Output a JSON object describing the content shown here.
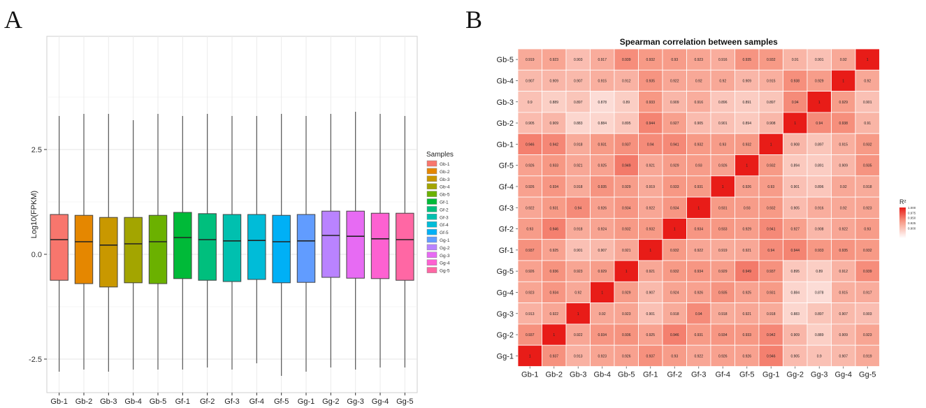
{
  "panels": {
    "a": "A",
    "b": "B"
  },
  "chart_data": [
    {
      "type": "boxplot",
      "panel": "A",
      "ylabel": "Log10(FPKM)",
      "xlabel": "",
      "ylim": [
        -3.3,
        5.2
      ],
      "yticks": [
        2.5,
        0.0,
        -2.5
      ],
      "ytick_labels": [
        "2.5",
        "0.0",
        "-2.5"
      ],
      "legend_title": "Samples",
      "legend_position": "right",
      "categories": [
        "Gb-1",
        "Gb-2",
        "Gb-3",
        "Gb-4",
        "Gb-5",
        "Gf-1",
        "Gf-2",
        "Gf-3",
        "Gf-4",
        "Gf-5",
        "Gg-1",
        "Gg-2",
        "Gg-3",
        "Gg-4",
        "Gg-5"
      ],
      "colors": [
        "#F8766D",
        "#E58700",
        "#C99800",
        "#A3A500",
        "#6BB100",
        "#00BA38",
        "#00BF7D",
        "#00C0AF",
        "#00BCD8",
        "#00B0F6",
        "#619CFF",
        "#B983FF",
        "#E76BF3",
        "#FD61D1",
        "#FF67A4"
      ],
      "boxes": [
        {
          "lower": -2.8,
          "q1": -0.62,
          "median": 0.35,
          "q3": 0.95,
          "upper": 3.3
        },
        {
          "lower": -2.75,
          "q1": -0.7,
          "median": 0.3,
          "q3": 0.93,
          "upper": 3.35
        },
        {
          "lower": -2.8,
          "q1": -0.78,
          "median": 0.22,
          "q3": 0.88,
          "upper": 3.35
        },
        {
          "lower": -2.75,
          "q1": -0.68,
          "median": 0.25,
          "q3": 0.88,
          "upper": 3.2
        },
        {
          "lower": -2.75,
          "q1": -0.7,
          "median": 0.3,
          "q3": 0.93,
          "upper": 3.35
        },
        {
          "lower": -2.75,
          "q1": -0.58,
          "median": 0.4,
          "q3": 1.0,
          "upper": 3.3
        },
        {
          "lower": -2.7,
          "q1": -0.62,
          "median": 0.35,
          "q3": 0.97,
          "upper": 3.35
        },
        {
          "lower": -2.75,
          "q1": -0.65,
          "median": 0.32,
          "q3": 0.95,
          "upper": 3.3
        },
        {
          "lower": -2.6,
          "q1": -0.6,
          "median": 0.33,
          "q3": 0.95,
          "upper": 3.3
        },
        {
          "lower": -2.9,
          "q1": -0.68,
          "median": 0.3,
          "q3": 0.93,
          "upper": 3.35
        },
        {
          "lower": -2.8,
          "q1": -0.67,
          "median": 0.32,
          "q3": 0.95,
          "upper": 3.3
        },
        {
          "lower": -2.7,
          "q1": -0.55,
          "median": 0.45,
          "q3": 1.03,
          "upper": 3.35
        },
        {
          "lower": -2.75,
          "q1": -0.57,
          "median": 0.43,
          "q3": 1.03,
          "upper": 3.4
        },
        {
          "lower": -2.7,
          "q1": -0.58,
          "median": 0.37,
          "q3": 0.98,
          "upper": 3.35
        },
        {
          "lower": -2.7,
          "q1": -0.62,
          "median": 0.35,
          "q3": 0.98,
          "upper": 3.3
        }
      ]
    },
    {
      "type": "heatmap",
      "panel": "B",
      "title": "Spearman correlation between samples",
      "x_labels": [
        "Gb-1",
        "Gb-2",
        "Gb-3",
        "Gb-4",
        "Gb-5",
        "Gf-1",
        "Gf-2",
        "Gf-3",
        "Gf-4",
        "Gf-5",
        "Gg-1",
        "Gg-2",
        "Gg-3",
        "Gg-4",
        "Gg-5"
      ],
      "y_labels": [
        "Gb-5",
        "Gb-4",
        "Gb-3",
        "Gb-2",
        "Gb-1",
        "Gf-5",
        "Gf-4",
        "Gf-3",
        "Gf-2",
        "Gf-1",
        "Gg-5",
        "Gg-4",
        "Gg-3",
        "Gg-2",
        "Gg-1"
      ],
      "values": [
        [
          0.919,
          0.923,
          0.903,
          0.917,
          0.939,
          0.932,
          0.93,
          0.923,
          0.916,
          0.935,
          0.932,
          0.91,
          0.901,
          0.92,
          1
        ],
        [
          0.907,
          0.909,
          0.907,
          0.915,
          0.912,
          0.935,
          0.922,
          0.92,
          0.92,
          0.909,
          0.915,
          0.938,
          0.929,
          1,
          0.92
        ],
        [
          0.9,
          0.889,
          0.897,
          0.878,
          0.89,
          0.933,
          0.909,
          0.916,
          0.896,
          0.891,
          0.897,
          0.94,
          1,
          0.929,
          0.901
        ],
        [
          0.905,
          0.909,
          0.883,
          0.884,
          0.895,
          0.944,
          0.927,
          0.905,
          0.901,
          0.894,
          0.908,
          1,
          0.94,
          0.938,
          0.91
        ],
        [
          0.946,
          0.942,
          0.918,
          0.931,
          0.937,
          0.94,
          0.941,
          0.932,
          0.93,
          0.932,
          1,
          0.908,
          0.897,
          0.915,
          0.932
        ],
        [
          0.926,
          0.933,
          0.921,
          0.925,
          0.949,
          0.921,
          0.929,
          0.93,
          0.926,
          1,
          0.932,
          0.894,
          0.891,
          0.909,
          0.935
        ],
        [
          0.926,
          0.934,
          0.918,
          0.935,
          0.929,
          0.919,
          0.933,
          0.931,
          1,
          0.926,
          0.93,
          0.901,
          0.896,
          0.92,
          0.918
        ],
        [
          0.922,
          0.931,
          0.94,
          0.926,
          0.934,
          0.922,
          0.934,
          1,
          0.931,
          0.93,
          0.932,
          0.905,
          0.916,
          0.92,
          0.923
        ],
        [
          0.93,
          0.946,
          0.918,
          0.924,
          0.932,
          0.932,
          1,
          0.934,
          0.933,
          0.929,
          0.941,
          0.927,
          0.908,
          0.922,
          0.93
        ],
        [
          0.937,
          0.925,
          0.901,
          0.907,
          0.921,
          1,
          0.932,
          0.922,
          0.919,
          0.921,
          0.94,
          0.944,
          0.933,
          0.935,
          0.932
        ],
        [
          0.926,
          0.936,
          0.923,
          0.929,
          1,
          0.921,
          0.932,
          0.934,
          0.929,
          0.949,
          0.937,
          0.895,
          0.89,
          0.912,
          0.939
        ],
        [
          0.923,
          0.934,
          0.92,
          1,
          0.929,
          0.907,
          0.924,
          0.926,
          0.935,
          0.925,
          0.931,
          0.884,
          0.878,
          0.915,
          0.917
        ],
        [
          0.913,
          0.922,
          1,
          0.92,
          0.923,
          0.901,
          0.918,
          0.94,
          0.918,
          0.921,
          0.918,
          0.883,
          0.897,
          0.907,
          0.903
        ],
        [
          0.937,
          1,
          0.922,
          0.934,
          0.936,
          0.925,
          0.946,
          0.931,
          0.934,
          0.933,
          0.942,
          0.909,
          0.889,
          0.909,
          0.923
        ],
        [
          1,
          0.937,
          0.913,
          0.923,
          0.926,
          0.937,
          0.93,
          0.922,
          0.926,
          0.926,
          0.946,
          0.905,
          0.9,
          0.907,
          0.919
        ]
      ],
      "color_range": [
        0.85,
        1.0
      ],
      "colorbar_title": "R²",
      "colorbar_ticks": [
        "1.000",
        "0.975",
        "0.950",
        "0.925",
        "0.900"
      ],
      "colorbar_tick_values": [
        1.0,
        0.975,
        0.95,
        0.925,
        0.9
      ],
      "legend_position": "right"
    }
  ]
}
